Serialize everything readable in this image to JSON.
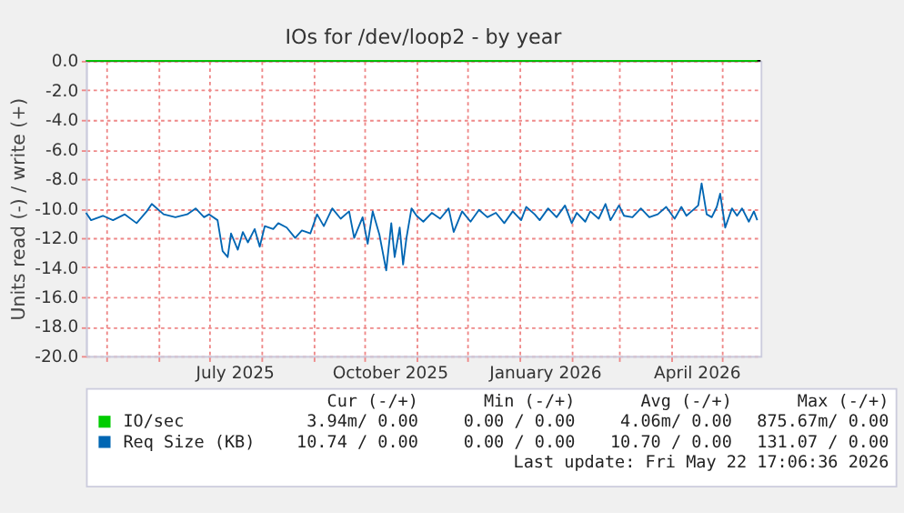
{
  "chart_data": {
    "type": "line",
    "title": "IOs for /dev/loop2 - by year",
    "ylabel": "Units read (-) / write (+)",
    "x": [
      "2025-04-19",
      "2025-04-22",
      "2025-04-29",
      "2025-05-05",
      "2025-05-12",
      "2025-05-19",
      "2025-05-25",
      "2025-05-28",
      "2025-06-04",
      "2025-06-11",
      "2025-06-18",
      "2025-06-23",
      "2025-06-28",
      "2025-07-01",
      "2025-07-06",
      "2025-07-09",
      "2025-07-12",
      "2025-07-14",
      "2025-07-18",
      "2025-07-21",
      "2025-07-24",
      "2025-07-28",
      "2025-07-31",
      "2025-08-03",
      "2025-08-08",
      "2025-08-11",
      "2025-08-16",
      "2025-08-21",
      "2025-08-25",
      "2025-08-30",
      "2025-09-03",
      "2025-09-07",
      "2025-09-12",
      "2025-09-17",
      "2025-09-22",
      "2025-09-25",
      "2025-09-30",
      "2025-10-03",
      "2025-10-06",
      "2025-10-10",
      "2025-10-14",
      "2025-10-17",
      "2025-10-19",
      "2025-10-22",
      "2025-10-24",
      "2025-10-26",
      "2025-10-29",
      "2025-11-01",
      "2025-11-05",
      "2025-11-10",
      "2025-11-15",
      "2025-11-20",
      "2025-11-23",
      "2025-11-28",
      "2025-12-03",
      "2025-12-08",
      "2025-12-13",
      "2025-12-18",
      "2025-12-23",
      "2025-12-28",
      "2026-01-02",
      "2026-01-05",
      "2026-01-10",
      "2026-01-13",
      "2026-01-18",
      "2026-01-23",
      "2026-01-28",
      "2026-02-01",
      "2026-02-04",
      "2026-02-09",
      "2026-02-12",
      "2026-02-17",
      "2026-02-21",
      "2026-02-24",
      "2026-03-01",
      "2026-03-04",
      "2026-03-09",
      "2026-03-14",
      "2026-03-19",
      "2026-03-24",
      "2026-03-29",
      "2026-04-03",
      "2026-04-07",
      "2026-04-10",
      "2026-04-13",
      "2026-04-17",
      "2026-04-19",
      "2026-04-22",
      "2026-04-25",
      "2026-04-28",
      "2026-04-30",
      "2026-05-03",
      "2026-05-07",
      "2026-05-10",
      "2026-05-13",
      "2026-05-17",
      "2026-05-20",
      "2026-05-22"
    ],
    "series": [
      {
        "name": "IO/sec",
        "color": "#00cc00",
        "values": [
          0,
          0,
          0,
          0,
          0,
          0,
          0,
          0,
          0,
          0,
          0,
          0,
          0,
          0,
          0,
          0,
          0,
          0,
          0,
          0,
          0,
          0,
          0,
          0,
          0,
          0,
          0,
          0,
          0,
          0,
          0,
          0,
          0,
          0,
          0,
          0,
          0,
          0,
          0,
          0,
          0,
          0,
          0,
          0,
          0,
          0,
          0,
          0,
          0,
          0,
          0,
          0,
          0,
          0,
          0,
          0,
          0,
          0,
          0,
          0,
          0,
          0,
          0,
          0,
          0,
          0,
          0,
          0,
          0,
          0,
          0,
          0,
          0,
          0,
          0,
          0,
          0,
          0,
          0,
          0,
          0,
          0,
          0,
          0,
          0,
          0,
          0,
          0,
          0,
          0,
          0,
          0,
          0,
          0,
          0,
          0,
          0,
          0
        ]
      },
      {
        "name": "Req Size (KB)",
        "color": "#0066b3",
        "values": [
          -10.3,
          -10.8,
          -10.5,
          -10.8,
          -10.4,
          -11.0,
          -10.2,
          -9.7,
          -10.4,
          -10.6,
          -10.4,
          -10.0,
          -10.6,
          -10.4,
          -10.8,
          -12.9,
          -13.3,
          -11.7,
          -12.8,
          -11.6,
          -12.3,
          -11.4,
          -12.6,
          -11.2,
          -11.4,
          -11.0,
          -11.3,
          -12.0,
          -11.5,
          -11.7,
          -10.4,
          -11.2,
          -10.0,
          -10.7,
          -10.2,
          -12.0,
          -10.6,
          -12.4,
          -10.2,
          -11.8,
          -14.2,
          -11.0,
          -13.3,
          -11.3,
          -13.8,
          -12.0,
          -10.0,
          -10.5,
          -10.9,
          -10.3,
          -10.7,
          -10.0,
          -11.6,
          -10.2,
          -10.9,
          -10.1,
          -10.6,
          -10.3,
          -11.0,
          -10.2,
          -10.8,
          -9.9,
          -10.4,
          -10.8,
          -10.0,
          -10.6,
          -9.8,
          -11.0,
          -10.3,
          -10.9,
          -10.2,
          -10.7,
          -9.7,
          -10.8,
          -9.8,
          -10.5,
          -10.6,
          -10.0,
          -10.6,
          -10.4,
          -9.9,
          -10.7,
          -9.9,
          -10.5,
          -10.2,
          -9.8,
          -8.3,
          -10.4,
          -10.6,
          -9.9,
          -9.0,
          -11.3,
          -10.0,
          -10.5,
          -10.0,
          -10.9,
          -10.2,
          -10.8
        ]
      }
    ],
    "xlim": [
      "2025-04-19",
      "2026-05-24"
    ],
    "xticks": [
      {
        "value": "2025-05-01",
        "label": null
      },
      {
        "value": "2025-06-01",
        "label": null
      },
      {
        "value": "2025-07-01",
        "label": null
      },
      {
        "value": "2025-07-16",
        "label": "July 2025"
      },
      {
        "value": "2025-08-01",
        "label": null
      },
      {
        "value": "2025-09-01",
        "label": null
      },
      {
        "value": "2025-10-01",
        "label": null
      },
      {
        "value": "2025-10-16",
        "label": "October 2025"
      },
      {
        "value": "2025-11-01",
        "label": null
      },
      {
        "value": "2025-12-01",
        "label": null
      },
      {
        "value": "2026-01-01",
        "label": null
      },
      {
        "value": "2026-01-16",
        "label": "January 2026"
      },
      {
        "value": "2026-02-01",
        "label": null
      },
      {
        "value": "2026-03-01",
        "label": null
      },
      {
        "value": "2026-04-01",
        "label": null
      },
      {
        "value": "2026-04-16",
        "label": "April 2026"
      },
      {
        "value": "2026-05-01",
        "label": null
      }
    ],
    "ylim": [
      -20,
      0
    ],
    "yticks": [
      {
        "value": 0,
        "label": "0.0"
      },
      {
        "value": -2,
        "label": "-2.0"
      },
      {
        "value": -4,
        "label": "-4.0"
      },
      {
        "value": -6,
        "label": "-6.0"
      },
      {
        "value": -8,
        "label": "-8.0"
      },
      {
        "value": -10,
        "label": "-10.0"
      },
      {
        "value": -12,
        "label": "-12.0"
      },
      {
        "value": -14,
        "label": "-14.0"
      },
      {
        "value": -16,
        "label": "-16.0"
      },
      {
        "value": -18,
        "label": "-18.0"
      },
      {
        "value": -20,
        "label": "-20.0"
      }
    ],
    "grid": true,
    "legend": "bottom",
    "ref_lines": [
      {
        "axis": "y",
        "value": 0,
        "color": "#000000"
      }
    ],
    "annotations": [
      "Cur (-/+)",
      "Min (-/+)",
      "Avg (-/+)",
      "Max (-/+)",
      "3.94m/ 0.00",
      "0.00 / 0.00",
      "4.06m/ 0.00",
      "875.67m/ 0.00",
      "10.74 / 0.00",
      "0.00 / 0.00",
      "10.70 / 0.00",
      "131.07 / 0.00",
      "Last update: Fri May 22 17:06:36 2026"
    ]
  }
}
